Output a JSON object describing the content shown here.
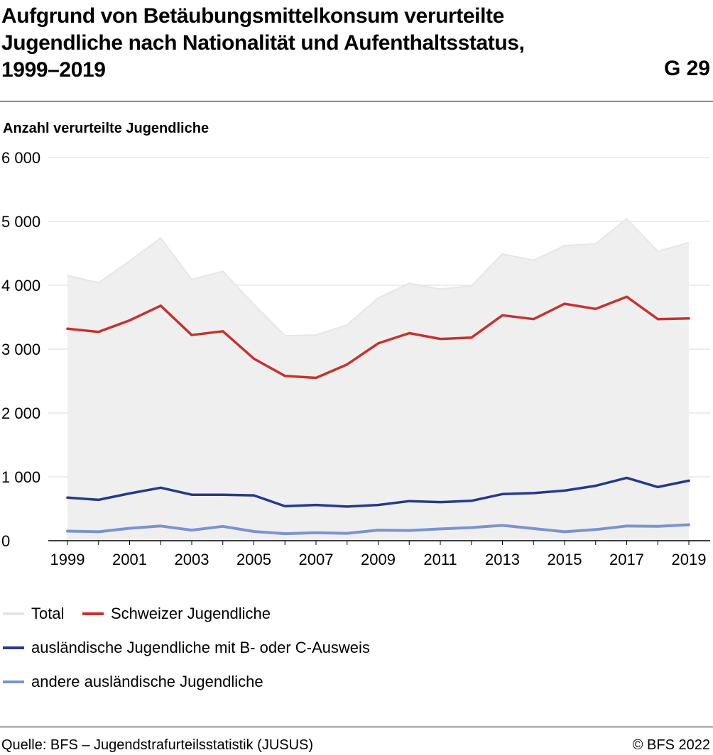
{
  "header": {
    "title_lines": [
      "Aufgrund von Betäubungsmittelkonsum verurteilte",
      "Jugendliche nach Nationalität und Aufenthaltsstatus,",
      "1999–2019"
    ],
    "chart_id": "G 29"
  },
  "footer": {
    "source": "Quelle: BFS – Jugendstrafurteilsstatistik (JUSUS)",
    "copyright": "© BFS 2022"
  },
  "colors": {
    "total_fill": "#efefef",
    "total_line": "#e6e6e6",
    "swiss": "#c8312e",
    "foreign_bc": "#263a8a",
    "foreign_other": "#7b93cf",
    "grid": "#d9d9d9",
    "axis": "#000000"
  },
  "chart_data": {
    "type": "line",
    "title": "Aufgrund von Betäubungsmittelkonsum verurteilte Jugendliche nach Nationalität und Aufenthaltsstatus, 1999–2019",
    "ylabel": "Anzahl verurteilte Jugendliche",
    "xlabel": "",
    "ylim": [
      0,
      6000
    ],
    "yticks": [
      0,
      1000,
      2000,
      3000,
      4000,
      5000,
      6000
    ],
    "ytick_labels": [
      "0",
      "1 000",
      "2 000",
      "3 000",
      "4 000",
      "5 000",
      "6 000"
    ],
    "x": [
      1999,
      2000,
      2001,
      2002,
      2003,
      2004,
      2005,
      2006,
      2007,
      2008,
      2009,
      2010,
      2011,
      2012,
      2013,
      2014,
      2015,
      2016,
      2017,
      2018,
      2019
    ],
    "xtick_labels": [
      "1999",
      "2001",
      "2003",
      "2005",
      "2007",
      "2009",
      "2011",
      "2013",
      "2015",
      "2017",
      "2019"
    ],
    "grid": true,
    "legend_position": "bottom",
    "series": [
      {
        "name": "Total",
        "style": "area",
        "color": "#e6e6e6",
        "values": [
          4150,
          4040,
          4380,
          4740,
          4090,
          4220,
          3700,
          3210,
          3220,
          3380,
          3800,
          4030,
          3940,
          3990,
          4490,
          4390,
          4620,
          4650,
          5040,
          4530,
          4670
        ]
      },
      {
        "name": "Schweizer Jugendliche",
        "style": "line",
        "color": "#c8312e",
        "values": [
          3320,
          3270,
          3450,
          3680,
          3220,
          3280,
          2850,
          2580,
          2550,
          2760,
          3090,
          3250,
          3160,
          3180,
          3530,
          3470,
          3710,
          3630,
          3820,
          3470,
          3480
        ]
      },
      {
        "name": "ausländische Jugendliche mit B- oder C-Ausweis",
        "style": "line",
        "color": "#263a8a",
        "values": [
          675,
          640,
          740,
          830,
          720,
          720,
          710,
          540,
          560,
          535,
          560,
          620,
          605,
          625,
          730,
          745,
          785,
          860,
          985,
          840,
          940
        ]
      },
      {
        "name": "andere ausländische Jugendliche",
        "style": "line",
        "color": "#7b93cf",
        "values": [
          150,
          140,
          195,
          230,
          165,
          225,
          145,
          110,
          125,
          115,
          165,
          160,
          185,
          205,
          240,
          190,
          140,
          175,
          230,
          225,
          250
        ]
      }
    ]
  }
}
